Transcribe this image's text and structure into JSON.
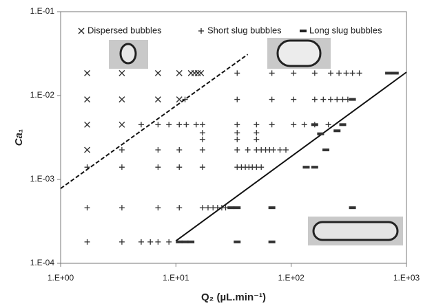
{
  "chart_data": {
    "type": "scatter",
    "x_label": "Q₂ (µL.min⁻¹)",
    "y_label": "Ca₁",
    "log_x": true,
    "log_y": true,
    "grid": false,
    "legend": "top",
    "xlim": [
      1,
      1000
    ],
    "ylim": [
      0.0001,
      0.1
    ],
    "xticks": [
      {
        "value": 1,
        "label": "1.E+00"
      },
      {
        "value": 10,
        "label": "1.E+01"
      },
      {
        "value": 100,
        "label": "1.E+02"
      },
      {
        "value": 1000,
        "label": "1.E+03"
      }
    ],
    "yticks": [
      {
        "value": 0.0001,
        "label": "1.E-04"
      },
      {
        "value": 0.001,
        "label": "1.E-03"
      },
      {
        "value": 0.01,
        "label": "1.E-02"
      },
      {
        "value": 0.1,
        "label": "1.E-01"
      }
    ],
    "series": [
      {
        "name": "Dispersed bubbles",
        "marker": "x",
        "color": "#333333",
        "x": [
          1.7,
          3.4,
          7,
          10.7,
          13.5,
          14.5,
          15.5,
          16.5,
          1.7,
          3.4,
          7,
          10.7,
          1.7,
          3.4,
          1.7
        ],
        "values": [
          0.0185,
          0.0185,
          0.0185,
          0.0185,
          0.0185,
          0.0185,
          0.0185,
          0.0185,
          0.009,
          0.009,
          0.009,
          0.009,
          0.0045,
          0.0045,
          0.00225
        ]
      },
      {
        "name": "Short slug bubbles",
        "marker": "+",
        "color": "#333333",
        "x": [
          34,
          68,
          105,
          160,
          220,
          260,
          300,
          340,
          390,
          12,
          34,
          68,
          105,
          160,
          190,
          220,
          250,
          280,
          310,
          5,
          7,
          8.7,
          10.7,
          12.3,
          15,
          17,
          34,
          50,
          68,
          105,
          130,
          160,
          210,
          17,
          17,
          34,
          34,
          50,
          50,
          3.4,
          7,
          10.7,
          17,
          34,
          42,
          50,
          55,
          60,
          65,
          70,
          80,
          90,
          1.7,
          3.4,
          7,
          10.7,
          17,
          34,
          37,
          40,
          43,
          46,
          50,
          55,
          1.7,
          3.4,
          7,
          10.7,
          17,
          19,
          21,
          23,
          25,
          27,
          1.7,
          3.4,
          5,
          6,
          7,
          8.7
        ],
        "values": [
          0.0185,
          0.0185,
          0.0185,
          0.0185,
          0.0185,
          0.0185,
          0.0185,
          0.0185,
          0.0185,
          0.009,
          0.009,
          0.009,
          0.009,
          0.009,
          0.009,
          0.009,
          0.009,
          0.009,
          0.009,
          0.0045,
          0.0045,
          0.0045,
          0.0045,
          0.0045,
          0.0045,
          0.0045,
          0.0045,
          0.0045,
          0.0045,
          0.0045,
          0.0045,
          0.0045,
          0.0045,
          0.0036,
          0.003,
          0.0036,
          0.003,
          0.0036,
          0.003,
          0.00225,
          0.00225,
          0.00225,
          0.00225,
          0.00225,
          0.00225,
          0.00225,
          0.00225,
          0.00225,
          0.00225,
          0.00225,
          0.00225,
          0.00225,
          0.0014,
          0.0014,
          0.0014,
          0.0014,
          0.0014,
          0.0014,
          0.0014,
          0.0014,
          0.0014,
          0.0014,
          0.0014,
          0.0014,
          0.00046,
          0.00046,
          0.00046,
          0.00046,
          0.00046,
          0.00046,
          0.00046,
          0.00046,
          0.00046,
          0.00046,
          0.00018,
          0.00018,
          0.00018,
          0.00018,
          0.00018,
          0.00018
        ]
      },
      {
        "name": "Long slug bubbles",
        "marker": "-",
        "color": "#333333",
        "x": [
          700,
          800,
          340,
          160,
          280,
          180,
          250,
          200,
          135,
          160,
          30,
          34,
          68,
          340,
          10.7,
          12,
          13.5,
          34,
          68
        ],
        "values": [
          0.0185,
          0.0185,
          0.009,
          0.0045,
          0.0045,
          0.0035,
          0.0038,
          0.00225,
          0.0014,
          0.0014,
          0.00046,
          0.00046,
          0.00046,
          0.00046,
          0.00018,
          0.00018,
          0.00018,
          0.00018,
          0.00018
        ]
      }
    ],
    "lines": [
      {
        "dashed": true,
        "color": "#111111",
        "x": [
          1,
          42
        ],
        "y": [
          0.00078,
          0.031
        ]
      },
      {
        "dashed": false,
        "color": "#111111",
        "x": [
          10,
          1000
        ],
        "y": [
          0.000185,
          0.019
        ]
      }
    ]
  }
}
